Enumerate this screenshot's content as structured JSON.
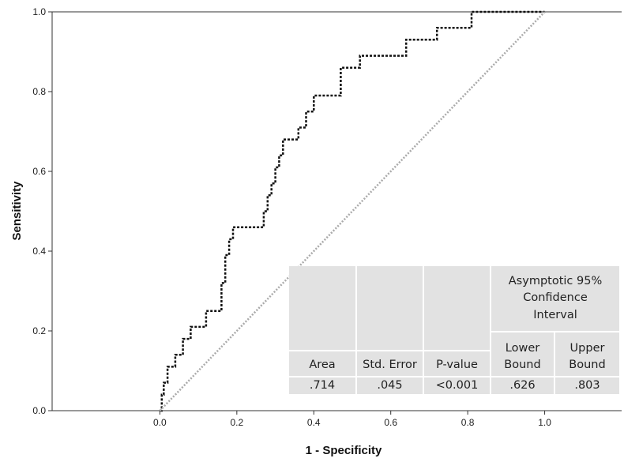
{
  "chart_data": {
    "type": "line",
    "xlabel": "1 - Specificity",
    "ylabel": "Sensitivity",
    "xlim": [
      -0.28,
      1.2
    ],
    "ylim": [
      0,
      1
    ],
    "x_ticks": [
      "0.0",
      "0.2",
      "0.4",
      "0.6",
      "0.8",
      "1.0"
    ],
    "y_ticks": [
      "0.0",
      "0.2",
      "0.4",
      "0.6",
      "0.8",
      "1.0"
    ],
    "grid": false,
    "series": [
      {
        "style": "dotted-step",
        "color": "#111111",
        "x": [
          0.0,
          0.005,
          0.005,
          0.01,
          0.01,
          0.02,
          0.02,
          0.04,
          0.04,
          0.06,
          0.06,
          0.08,
          0.08,
          0.12,
          0.12,
          0.16,
          0.16,
          0.17,
          0.17,
          0.18,
          0.18,
          0.19,
          0.19,
          0.27,
          0.27,
          0.28,
          0.28,
          0.29,
          0.29,
          0.3,
          0.3,
          0.31,
          0.31,
          0.32,
          0.32,
          0.36,
          0.36,
          0.38,
          0.38,
          0.4,
          0.4,
          0.47,
          0.47,
          0.52,
          0.52,
          0.64,
          0.64,
          0.72,
          0.72,
          0.81,
          0.81,
          1.0
        ],
        "y": [
          0.0,
          0.0,
          0.04,
          0.04,
          0.07,
          0.07,
          0.11,
          0.11,
          0.14,
          0.14,
          0.18,
          0.18,
          0.21,
          0.21,
          0.25,
          0.25,
          0.32,
          0.32,
          0.39,
          0.39,
          0.43,
          0.43,
          0.46,
          0.46,
          0.5,
          0.5,
          0.54,
          0.54,
          0.57,
          0.57,
          0.61,
          0.61,
          0.64,
          0.64,
          0.68,
          0.68,
          0.71,
          0.71,
          0.75,
          0.75,
          0.79,
          0.79,
          0.86,
          0.86,
          0.89,
          0.89,
          0.93,
          0.93,
          0.96,
          0.96,
          1.0,
          1.0
        ]
      },
      {
        "style": "reference-diagonal",
        "color": "#aaaaaa",
        "x": [
          0,
          1
        ],
        "y": [
          0,
          1
        ]
      }
    ],
    "table": {
      "group_header": "Asymptotic 95% Confidence Interval",
      "columns": [
        "Area",
        "Std. Error",
        "P-value",
        "Lower Bound",
        "Upper Bound"
      ],
      "row": [
        ".714",
        ".045",
        "<0.001",
        ".626",
        ".803"
      ]
    }
  }
}
